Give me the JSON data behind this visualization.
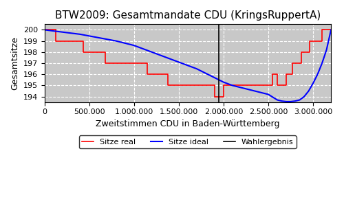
{
  "title": "BTW2009: Gesamtmandate CDU (KringsRuppertA)",
  "xlabel": "Zweitstimmen CDU in Baden-Württemberg",
  "ylabel": "Gesamtsitze",
  "wahlergebnis": 1950000,
  "xlim": [
    0,
    3200000
  ],
  "ylim": [
    193.5,
    200.5
  ],
  "yticks": [
    194,
    195,
    196,
    197,
    198,
    199,
    200
  ],
  "xticks": [
    0,
    500000,
    1000000,
    1500000,
    2000000,
    2500000,
    3000000
  ],
  "bg_color": "#c8c8c8",
  "grid_color": "white",
  "ideal_color": "blue",
  "real_color": "red",
  "wahlergebnis_color": "black",
  "ideal_line_x": [
    0,
    100000,
    200000,
    400000,
    600000,
    800000,
    900000,
    1000000,
    1100000,
    1200000,
    1300000,
    1400000,
    1500000,
    1600000,
    1700000,
    1800000,
    1900000,
    1950000,
    2000000,
    2100000,
    2200000,
    2300000,
    2400000,
    2500000,
    2600000,
    2650000,
    2700000,
    2750000,
    2800000,
    2850000,
    2900000,
    2950000,
    3000000,
    3050000,
    3100000,
    3150000,
    3200000
  ],
  "ideal_line_y": [
    200.0,
    199.9,
    199.8,
    199.6,
    199.3,
    199.0,
    198.8,
    198.6,
    198.3,
    198.0,
    197.7,
    197.4,
    197.1,
    196.8,
    196.5,
    196.1,
    195.7,
    195.5,
    195.3,
    195.0,
    194.8,
    194.6,
    194.4,
    194.2,
    193.7,
    193.6,
    193.55,
    193.55,
    193.6,
    193.7,
    194.0,
    194.5,
    195.2,
    196.0,
    197.0,
    198.2,
    200.0
  ],
  "real_steps_x": [
    0,
    130000,
    130000,
    430000,
    430000,
    680000,
    680000,
    900000,
    900000,
    1150000,
    1150000,
    1380000,
    1380000,
    1600000,
    1600000,
    1900000,
    1900000,
    2000000,
    2000000,
    2450000,
    2450000,
    2550000,
    2550000,
    2600000,
    2600000,
    2700000,
    2700000,
    2770000,
    2770000,
    2870000,
    2870000,
    2960000,
    2960000,
    3040000,
    3040000,
    3100000,
    3100000,
    3200000
  ],
  "real_steps_y": [
    200,
    200,
    199,
    199,
    198,
    198,
    197,
    197,
    197,
    197,
    196,
    196,
    195,
    195,
    195,
    195,
    194,
    194,
    195,
    195,
    195,
    195,
    196,
    196,
    195,
    195,
    196,
    196,
    197,
    197,
    198,
    198,
    199,
    199,
    199,
    199,
    200,
    200
  ]
}
